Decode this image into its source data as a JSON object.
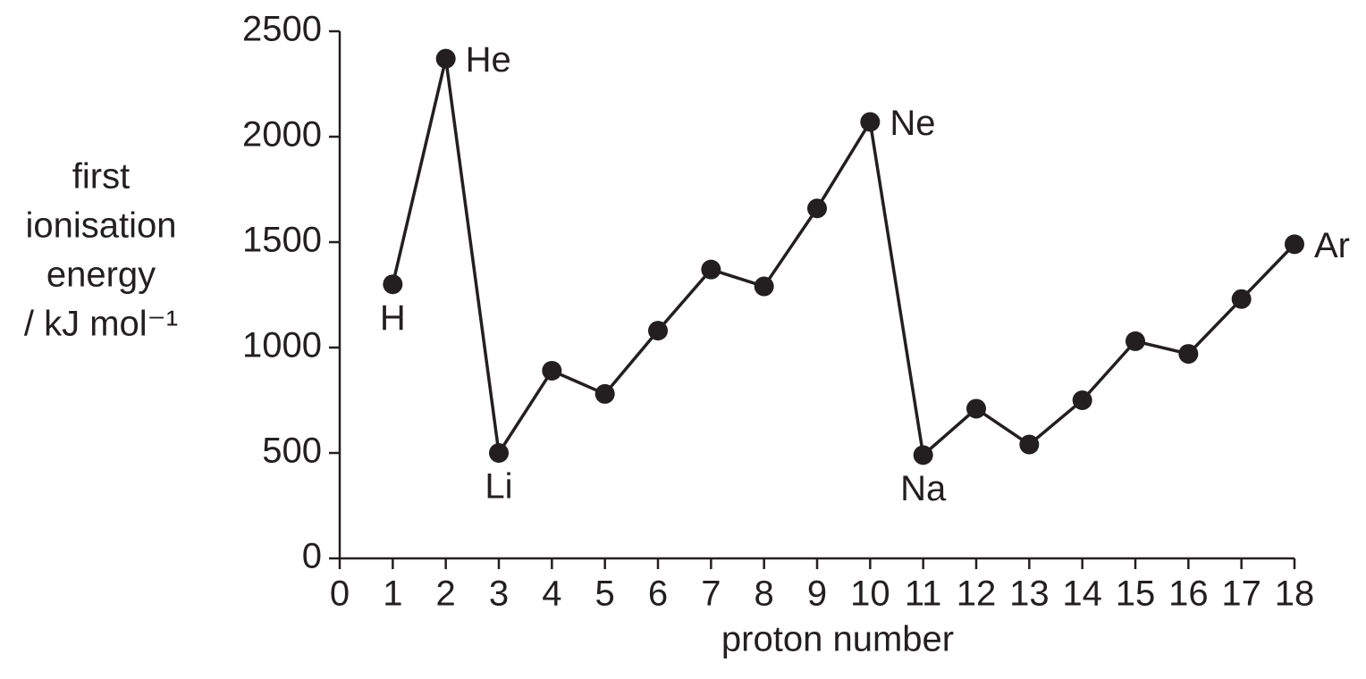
{
  "chart_data": {
    "type": "line",
    "xlabel": "proton number",
    "ylabel": [
      "first",
      "ionisation",
      "energy",
      "/ kJ mol⁻¹"
    ],
    "x": [
      1,
      2,
      3,
      4,
      5,
      6,
      7,
      8,
      9,
      10,
      11,
      12,
      13,
      14,
      15,
      16,
      17,
      18
    ],
    "series": [
      {
        "color": "#231f20",
        "values": [
          1300,
          2370,
          500,
          890,
          780,
          1080,
          1370,
          1290,
          1660,
          2070,
          490,
          710,
          540,
          750,
          1030,
          970,
          1230,
          1490
        ]
      }
    ],
    "annotations": [
      {
        "x": 1,
        "text": "H",
        "position": "below"
      },
      {
        "x": 2,
        "text": "He",
        "position": "right"
      },
      {
        "x": 3,
        "text": "Li",
        "position": "below"
      },
      {
        "x": 10,
        "text": "Ne",
        "position": "right"
      },
      {
        "x": 11,
        "text": "Na",
        "position": "below"
      },
      {
        "x": 18,
        "text": "Ar",
        "position": "right"
      }
    ],
    "xlim": [
      0,
      18
    ],
    "xticks": [
      0,
      1,
      2,
      3,
      4,
      5,
      6,
      7,
      8,
      9,
      10,
      11,
      12,
      13,
      14,
      15,
      16,
      17,
      18
    ],
    "ylim": [
      0,
      2500
    ],
    "yticks": [
      0,
      500,
      1000,
      1500,
      2000,
      2500
    ],
    "grid": false
  }
}
